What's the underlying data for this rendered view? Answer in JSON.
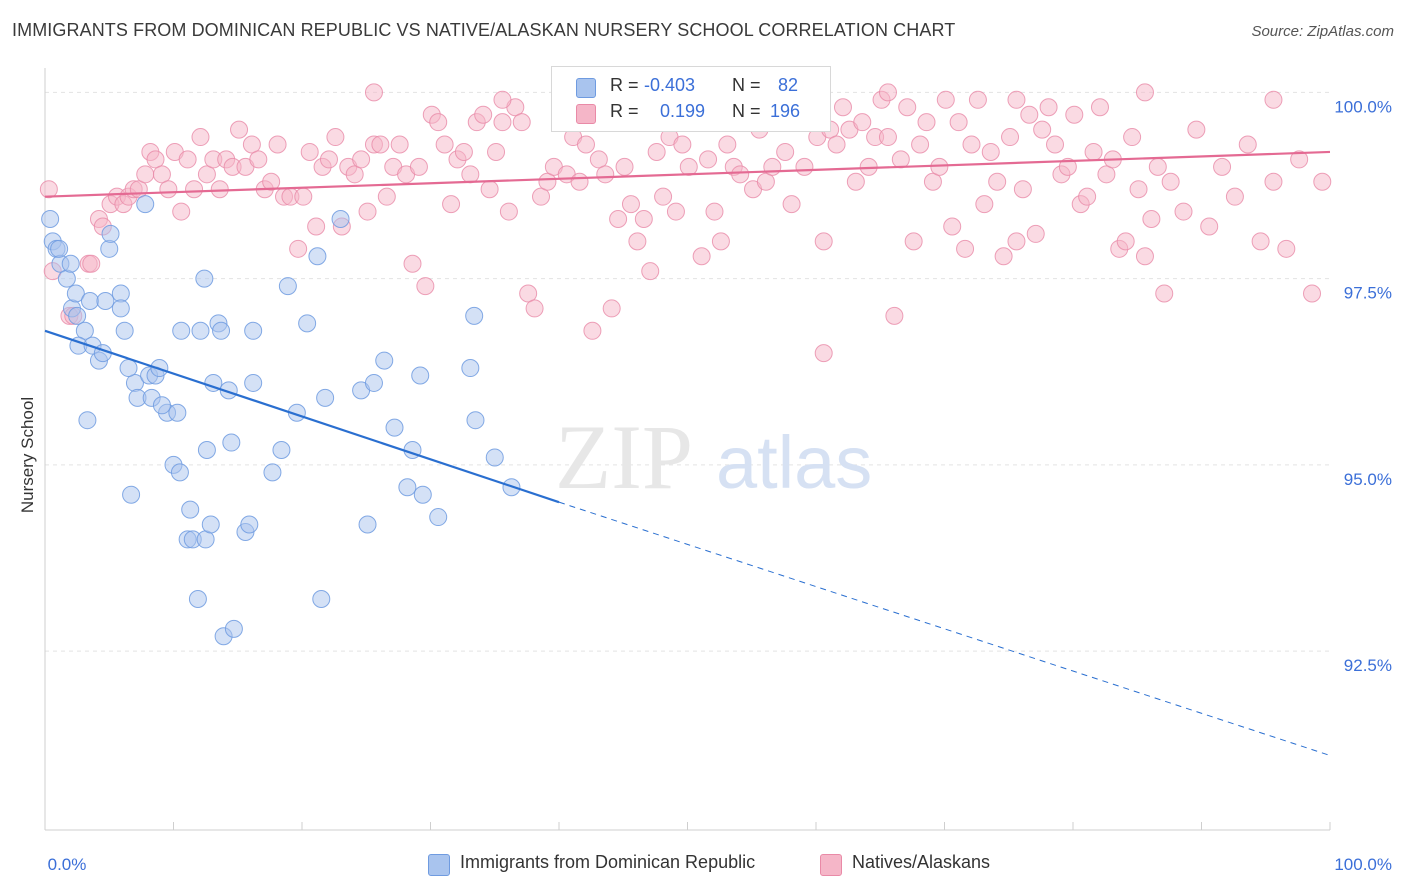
{
  "header": {
    "title": "IMMIGRANTS FROM DOMINICAN REPUBLIC VS NATIVE/ALASKAN NURSERY SCHOOL CORRELATION CHART",
    "source": "Source: ZipAtlas.com"
  },
  "watermark": {
    "zip": "ZIP",
    "atlas": "atlas"
  },
  "legend": {
    "rows": [
      {
        "r_label": "R =",
        "r_value": "-0.403",
        "n_label": "N =",
        "n_value": "82",
        "color": "#a9c4ee"
      },
      {
        "r_label": "R =",
        "r_value": "0.199",
        "n_label": "N =",
        "n_value": "196",
        "color": "#f5b6c8"
      }
    ]
  },
  "bottom_legend": [
    {
      "label": "Immigrants from Dominican Republic",
      "color": "#a9c4ee"
    },
    {
      "label": "Natives/Alaskans",
      "color": "#f5b6c8"
    }
  ],
  "chart_data": {
    "type": "scatter",
    "title": "IMMIGRANTS FROM DOMINICAN REPUBLIC VS NATIVE/ALASKAN NURSERY SCHOOL CORRELATION CHART",
    "xlabel": "",
    "ylabel": "Nursery School",
    "xlim": [
      0,
      100
    ],
    "ylim": [
      90.1,
      100.3
    ],
    "x_tick_labels": [
      "0.0%",
      "100.0%"
    ],
    "y_ticks": [
      100.0,
      97.5,
      95.0,
      92.5
    ],
    "y_tick_labels": [
      "100.0%",
      "97.5%",
      "95.0%",
      "92.5%"
    ],
    "grid": "horizontal dashed",
    "legend_position": "top-center",
    "colors": {
      "blue_fill": "#a9c4ee",
      "blue_stroke": "#6f9be0",
      "blue_line": "#2a6fd0",
      "pink_fill": "#f5b6c8",
      "pink_stroke": "#e98aa7",
      "pink_line": "#e46a93",
      "axis_label": "#3b6fd8"
    },
    "series": [
      {
        "name": "Immigrants from Dominican Republic",
        "color": "#a9c4ee",
        "trend": {
          "x": [
            0,
            40,
            100
          ],
          "y": [
            96.8,
            94.5,
            91.1
          ],
          "solid_until": 40
        },
        "points": [
          [
            0.4,
            98.3
          ],
          [
            0.6,
            98.0
          ],
          [
            0.9,
            97.9
          ],
          [
            1.2,
            97.7
          ],
          [
            1.7,
            97.5
          ],
          [
            2.1,
            97.1
          ],
          [
            2.5,
            97.0
          ],
          [
            2.4,
            97.3
          ],
          [
            3.1,
            96.8
          ],
          [
            2.6,
            96.6
          ],
          [
            3.7,
            96.6
          ],
          [
            4.2,
            96.4
          ],
          [
            4.5,
            96.5
          ],
          [
            3.5,
            97.2
          ],
          [
            4.7,
            97.2
          ],
          [
            5.0,
            97.9
          ],
          [
            5.9,
            97.3
          ],
          [
            5.9,
            97.1
          ],
          [
            6.2,
            96.8
          ],
          [
            7.0,
            96.1
          ],
          [
            6.5,
            96.3
          ],
          [
            7.2,
            95.9
          ],
          [
            8.1,
            96.2
          ],
          [
            8.3,
            95.9
          ],
          [
            8.6,
            96.2
          ],
          [
            8.9,
            96.3
          ],
          [
            9.5,
            95.7
          ],
          [
            10.0,
            95.0
          ],
          [
            10.3,
            95.7
          ],
          [
            10.5,
            94.9
          ],
          [
            11.1,
            94.0
          ],
          [
            11.3,
            94.4
          ],
          [
            11.5,
            94.0
          ],
          [
            12.1,
            96.8
          ],
          [
            12.5,
            94.0
          ],
          [
            12.6,
            95.2
          ],
          [
            12.9,
            94.2
          ],
          [
            13.1,
            96.1
          ],
          [
            13.5,
            96.9
          ],
          [
            13.7,
            96.8
          ],
          [
            13.9,
            92.7
          ],
          [
            14.3,
            96.0
          ],
          [
            14.5,
            95.3
          ],
          [
            14.7,
            92.8
          ],
          [
            15.6,
            94.1
          ],
          [
            15.9,
            94.2
          ],
          [
            16.2,
            96.8
          ],
          [
            17.7,
            94.9
          ],
          [
            18.4,
            95.2
          ],
          [
            18.9,
            97.4
          ],
          [
            19.6,
            95.7
          ],
          [
            21.2,
            97.8
          ],
          [
            21.5,
            93.2
          ],
          [
            21.8,
            95.9
          ],
          [
            23.0,
            98.3
          ],
          [
            24.6,
            96.0
          ],
          [
            25.1,
            94.2
          ],
          [
            25.6,
            96.1
          ],
          [
            26.4,
            96.4
          ],
          [
            27.2,
            95.5
          ],
          [
            28.2,
            94.7
          ],
          [
            28.6,
            95.2
          ],
          [
            29.2,
            96.2
          ],
          [
            29.4,
            94.6
          ],
          [
            30.6,
            94.3
          ],
          [
            33.1,
            96.3
          ],
          [
            33.4,
            97.0
          ],
          [
            33.5,
            95.6
          ],
          [
            35.0,
            95.1
          ],
          [
            36.3,
            94.7
          ],
          [
            1.1,
            97.9
          ],
          [
            2.0,
            97.7
          ],
          [
            5.1,
            98.1
          ],
          [
            7.8,
            98.5
          ],
          [
            10.6,
            96.8
          ],
          [
            12.4,
            97.5
          ],
          [
            16.2,
            96.1
          ],
          [
            11.9,
            93.2
          ],
          [
            6.7,
            94.6
          ],
          [
            20.4,
            96.9
          ],
          [
            3.3,
            95.6
          ],
          [
            9.1,
            95.8
          ]
        ]
      },
      {
        "name": "Natives/Alaskans",
        "color": "#f5b6c8",
        "trend": {
          "x": [
            0,
            100
          ],
          "y": [
            98.6,
            99.2
          ]
        },
        "points": [
          [
            0.3,
            98.7
          ],
          [
            0.6,
            97.6
          ],
          [
            1.9,
            97.0
          ],
          [
            2.2,
            97.0
          ],
          [
            3.4,
            97.7
          ],
          [
            3.6,
            97.7
          ],
          [
            4.2,
            98.3
          ],
          [
            4.5,
            98.2
          ],
          [
            5.1,
            98.5
          ],
          [
            5.6,
            98.6
          ],
          [
            6.1,
            98.5
          ],
          [
            6.5,
            98.6
          ],
          [
            6.9,
            98.7
          ],
          [
            7.3,
            98.7
          ],
          [
            7.8,
            98.9
          ],
          [
            8.2,
            99.2
          ],
          [
            8.6,
            99.1
          ],
          [
            9.1,
            98.9
          ],
          [
            9.6,
            98.7
          ],
          [
            10.1,
            99.2
          ],
          [
            10.6,
            98.4
          ],
          [
            11.1,
            99.1
          ],
          [
            11.6,
            98.7
          ],
          [
            12.1,
            99.4
          ],
          [
            12.6,
            98.9
          ],
          [
            13.1,
            99.1
          ],
          [
            13.6,
            98.7
          ],
          [
            14.1,
            99.1
          ],
          [
            14.6,
            99.0
          ],
          [
            15.1,
            99.5
          ],
          [
            15.6,
            99.0
          ],
          [
            16.1,
            99.3
          ],
          [
            16.6,
            99.1
          ],
          [
            17.1,
            98.7
          ],
          [
            17.6,
            98.8
          ],
          [
            18.1,
            99.3
          ],
          [
            18.6,
            98.6
          ],
          [
            19.1,
            98.6
          ],
          [
            19.7,
            97.9
          ],
          [
            20.1,
            98.6
          ],
          [
            20.6,
            99.2
          ],
          [
            21.1,
            98.2
          ],
          [
            21.6,
            99.0
          ],
          [
            22.1,
            99.1
          ],
          [
            22.6,
            99.4
          ],
          [
            23.1,
            98.2
          ],
          [
            23.6,
            99.0
          ],
          [
            24.1,
            98.9
          ],
          [
            24.6,
            99.1
          ],
          [
            25.1,
            98.4
          ],
          [
            25.6,
            99.3
          ],
          [
            26.1,
            99.3
          ],
          [
            26.6,
            98.6
          ],
          [
            27.1,
            99.0
          ],
          [
            27.6,
            99.3
          ],
          [
            28.1,
            98.9
          ],
          [
            28.6,
            97.7
          ],
          [
            29.1,
            99.0
          ],
          [
            29.6,
            97.4
          ],
          [
            30.1,
            99.7
          ],
          [
            30.6,
            99.6
          ],
          [
            31.1,
            99.3
          ],
          [
            31.6,
            98.5
          ],
          [
            32.1,
            99.1
          ],
          [
            32.6,
            99.2
          ],
          [
            33.1,
            98.9
          ],
          [
            33.6,
            99.6
          ],
          [
            34.1,
            99.7
          ],
          [
            34.6,
            98.7
          ],
          [
            35.1,
            99.2
          ],
          [
            35.6,
            99.6
          ],
          [
            36.1,
            98.4
          ],
          [
            36.6,
            99.8
          ],
          [
            37.1,
            99.6
          ],
          [
            37.6,
            97.3
          ],
          [
            38.1,
            97.1
          ],
          [
            38.6,
            98.6
          ],
          [
            39.1,
            98.8
          ],
          [
            39.6,
            99.0
          ],
          [
            40.1,
            99.9
          ],
          [
            40.6,
            98.9
          ],
          [
            41.1,
            99.4
          ],
          [
            41.6,
            98.8
          ],
          [
            42.1,
            99.3
          ],
          [
            42.6,
            96.8
          ],
          [
            43.1,
            99.1
          ],
          [
            43.6,
            98.9
          ],
          [
            44.1,
            97.1
          ],
          [
            44.6,
            98.3
          ],
          [
            45.1,
            99.0
          ],
          [
            45.6,
            98.5
          ],
          [
            46.1,
            98.0
          ],
          [
            46.6,
            98.3
          ],
          [
            47.1,
            97.6
          ],
          [
            47.6,
            99.2
          ],
          [
            48.1,
            98.6
          ],
          [
            48.6,
            99.4
          ],
          [
            49.1,
            98.4
          ],
          [
            49.6,
            99.3
          ],
          [
            50.1,
            99.0
          ],
          [
            50.6,
            99.7
          ],
          [
            51.1,
            97.8
          ],
          [
            51.6,
            99.1
          ],
          [
            52.1,
            98.4
          ],
          [
            52.6,
            98.0
          ],
          [
            53.1,
            99.3
          ],
          [
            53.6,
            99.0
          ],
          [
            54.1,
            98.9
          ],
          [
            54.6,
            99.8
          ],
          [
            55.1,
            98.7
          ],
          [
            55.6,
            99.5
          ],
          [
            56.1,
            98.8
          ],
          [
            56.6,
            99.0
          ],
          [
            57.1,
            99.6
          ],
          [
            57.6,
            99.2
          ],
          [
            58.1,
            98.5
          ],
          [
            58.6,
            99.8
          ],
          [
            59.1,
            99.0
          ],
          [
            59.6,
            99.8
          ],
          [
            60.1,
            99.4
          ],
          [
            60.6,
            98.0
          ],
          [
            61.1,
            99.5
          ],
          [
            61.6,
            99.3
          ],
          [
            62.1,
            99.8
          ],
          [
            62.6,
            99.5
          ],
          [
            63.1,
            98.8
          ],
          [
            63.6,
            99.6
          ],
          [
            64.1,
            99.0
          ],
          [
            64.6,
            99.4
          ],
          [
            65.1,
            99.9
          ],
          [
            65.6,
            99.4
          ],
          [
            66.1,
            97.0
          ],
          [
            66.6,
            99.1
          ],
          [
            67.1,
            99.8
          ],
          [
            67.6,
            98.0
          ],
          [
            68.1,
            99.3
          ],
          [
            68.6,
            99.6
          ],
          [
            69.1,
            98.8
          ],
          [
            69.6,
            99.0
          ],
          [
            70.1,
            99.9
          ],
          [
            70.6,
            98.2
          ],
          [
            71.1,
            99.6
          ],
          [
            71.6,
            97.9
          ],
          [
            72.1,
            99.3
          ],
          [
            72.6,
            99.9
          ],
          [
            73.1,
            98.5
          ],
          [
            73.6,
            99.2
          ],
          [
            74.1,
            98.8
          ],
          [
            74.6,
            97.8
          ],
          [
            75.1,
            99.4
          ],
          [
            75.6,
            98.0
          ],
          [
            76.1,
            98.7
          ],
          [
            76.6,
            99.7
          ],
          [
            77.1,
            98.1
          ],
          [
            77.6,
            99.5
          ],
          [
            78.1,
            99.8
          ],
          [
            78.6,
            99.3
          ],
          [
            79.1,
            98.9
          ],
          [
            79.6,
            99.0
          ],
          [
            80.1,
            99.7
          ],
          [
            80.6,
            98.5
          ],
          [
            81.1,
            98.6
          ],
          [
            81.6,
            99.2
          ],
          [
            82.1,
            99.8
          ],
          [
            82.6,
            98.9
          ],
          [
            83.1,
            99.1
          ],
          [
            83.6,
            97.9
          ],
          [
            84.1,
            98.0
          ],
          [
            84.6,
            99.4
          ],
          [
            85.1,
            98.7
          ],
          [
            85.6,
            97.8
          ],
          [
            86.1,
            98.3
          ],
          [
            86.6,
            99.0
          ],
          [
            87.1,
            97.3
          ],
          [
            87.6,
            98.8
          ],
          [
            60.6,
            96.5
          ],
          [
            55.6,
            99.9
          ],
          [
            45.6,
            99.8
          ],
          [
            35.6,
            99.9
          ],
          [
            25.6,
            100.0
          ],
          [
            65.6,
            100.0
          ],
          [
            75.6,
            99.9
          ],
          [
            85.6,
            100.0
          ],
          [
            95.6,
            99.9
          ],
          [
            88.6,
            98.4
          ],
          [
            89.6,
            99.5
          ],
          [
            90.6,
            98.2
          ],
          [
            91.6,
            99.0
          ],
          [
            92.6,
            98.6
          ],
          [
            93.6,
            99.3
          ],
          [
            94.6,
            98.0
          ],
          [
            95.6,
            98.8
          ],
          [
            96.6,
            97.9
          ],
          [
            97.6,
            99.1
          ],
          [
            98.6,
            97.3
          ],
          [
            99.4,
            98.8
          ]
        ]
      }
    ]
  }
}
